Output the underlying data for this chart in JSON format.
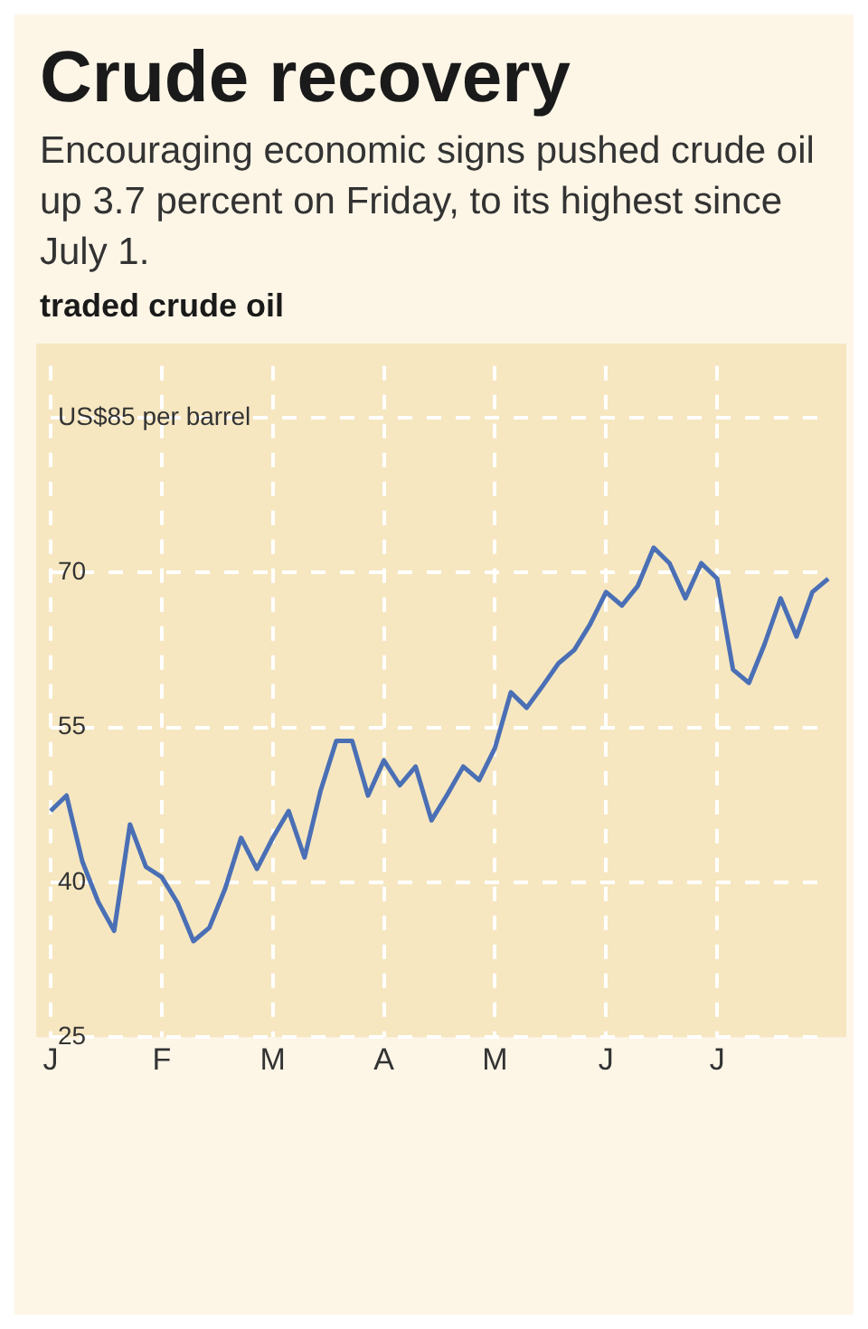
{
  "chart_data": {
    "type": "line",
    "title": "Crude recovery",
    "subtitle": "Encouraging economic signs pushed crude oil up 3.7 percent on Friday, to its highest since July 1.",
    "annotations": [
      "traded crude oil"
    ],
    "categories": [
      "J",
      null,
      null,
      null,
      null,
      null,
      null,
      "F",
      null,
      null,
      null,
      null,
      null,
      null,
      "M",
      null,
      null,
      null,
      null,
      null,
      null,
      "A",
      null,
      null,
      null,
      null,
      null,
      null,
      "M",
      null,
      null,
      null,
      null,
      null,
      null,
      "J",
      null,
      null,
      null,
      null,
      null,
      null,
      "J",
      null,
      null,
      null,
      null,
      null,
      null,
      null
    ],
    "series": [
      {
        "color": "#4a6fb5",
        "values": [
          46.9,
          48.4,
          42.0,
          38.1,
          35.3,
          45.6,
          41.5,
          40.5,
          38.0,
          34.3,
          35.6,
          39.4,
          44.3,
          41.3,
          44.3,
          46.9,
          42.4,
          48.8,
          53.7,
          53.7,
          48.4,
          51.8,
          49.4,
          51.2,
          46.0,
          48.5,
          51.2,
          49.9,
          53.0,
          58.4,
          56.9,
          59.0,
          61.2,
          62.5,
          65.0,
          68.1,
          66.8,
          68.7,
          72.4,
          70.9,
          67.5,
          70.9,
          69.4,
          60.6,
          59.3,
          63.1,
          67.5,
          63.8,
          68.1,
          69.4
        ]
      }
    ],
    "ylim": [
      25,
      90
    ],
    "yticks": [
      25,
      40,
      55,
      70,
      {
        "value": 85,
        "label": "US$85 per barrel"
      }
    ],
    "grid": true
  }
}
